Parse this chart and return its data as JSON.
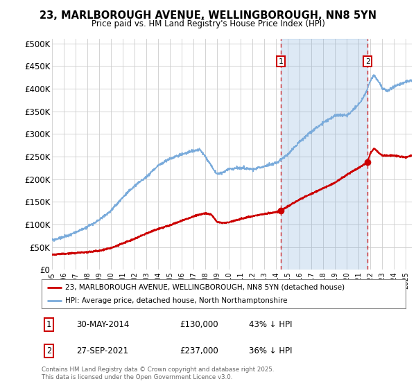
{
  "title": "23, MARLBOROUGH AVENUE, WELLINGBOROUGH, NN8 5YN",
  "subtitle": "Price paid vs. HM Land Registry's House Price Index (HPI)",
  "hpi_color": "#7aabdb",
  "hpi_fill_color": "#daeaf5",
  "price_color": "#cc0000",
  "background_color": "#ffffff",
  "grid_color": "#cccccc",
  "ylim": [
    0,
    510000
  ],
  "yticks": [
    0,
    50000,
    100000,
    150000,
    200000,
    250000,
    300000,
    350000,
    400000,
    450000,
    500000
  ],
  "ytick_labels": [
    "£0",
    "£50K",
    "£100K",
    "£150K",
    "£200K",
    "£250K",
    "£300K",
    "£350K",
    "£400K",
    "£450K",
    "£500K"
  ],
  "sale1_x": 2014.41,
  "sale1_y": 130000,
  "sale1_label": "30-MAY-2014",
  "sale1_price": "£130,000",
  "sale1_hpi": "43% ↓ HPI",
  "sale2_x": 2021.74,
  "sale2_y": 237000,
  "sale2_label": "27-SEP-2021",
  "sale2_price": "£237,000",
  "sale2_hpi": "36% ↓ HPI",
  "legend_label1": "23, MARLBOROUGH AVENUE, WELLINGBOROUGH, NN8 5YN (detached house)",
  "legend_label2": "HPI: Average price, detached house, North Northamptonshire",
  "footer": "Contains HM Land Registry data © Crown copyright and database right 2025.\nThis data is licensed under the Open Government Licence v3.0.",
  "xmin": 1995,
  "xmax": 2025.5,
  "hpi_key_years": [
    1995,
    1996,
    1997,
    1998,
    1999,
    2000,
    2001,
    2002,
    2003,
    2004,
    2005,
    2006,
    2007,
    2007.5,
    2008,
    2009,
    2009.5,
    2010,
    2011,
    2012,
    2013,
    2014,
    2015,
    2016,
    2017,
    2018,
    2019,
    2019.5,
    2020,
    2021,
    2021.5,
    2022,
    2022.3,
    2022.7,
    2023,
    2023.5,
    2024,
    2025,
    2025.5
  ],
  "hpi_key_values": [
    65000,
    72000,
    82000,
    95000,
    110000,
    130000,
    160000,
    185000,
    205000,
    230000,
    245000,
    255000,
    262000,
    265000,
    250000,
    210000,
    215000,
    222000,
    225000,
    222000,
    228000,
    235000,
    255000,
    283000,
    305000,
    325000,
    340000,
    342000,
    340000,
    365000,
    385000,
    418000,
    430000,
    415000,
    400000,
    395000,
    405000,
    415000,
    418000
  ],
  "price_key_years": [
    1995,
    1996,
    1997,
    1998,
    1999,
    2000,
    2001,
    2002,
    2003,
    2004,
    2005,
    2006,
    2007,
    2008,
    2008.5,
    2009,
    2009.5,
    2010,
    2011,
    2012,
    2013,
    2014,
    2014.41,
    2015,
    2016,
    2017,
    2018,
    2019,
    2020,
    2021,
    2021.74,
    2022,
    2022.3,
    2022.7,
    2023,
    2024,
    2025,
    2025.5
  ],
  "price_key_values": [
    33000,
    35000,
    37000,
    39000,
    42000,
    48000,
    58000,
    68000,
    80000,
    90000,
    98000,
    108000,
    118000,
    125000,
    122000,
    105000,
    103000,
    105000,
    112000,
    118000,
    123000,
    127000,
    130000,
    140000,
    155000,
    168000,
    180000,
    192000,
    210000,
    225000,
    237000,
    258000,
    268000,
    258000,
    252000,
    252000,
    248000,
    252000
  ]
}
